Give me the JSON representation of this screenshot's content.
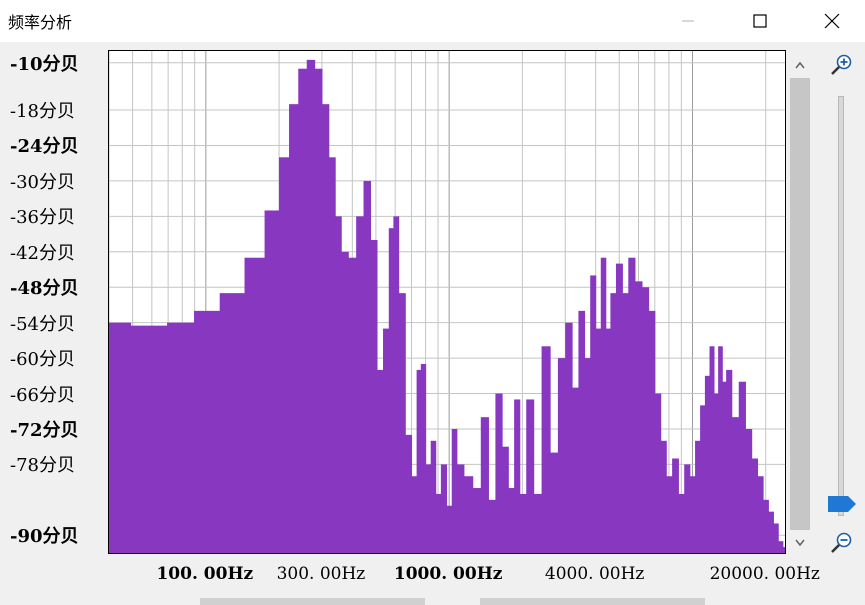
{
  "window": {
    "title": "频率分析",
    "minimize_icon": "minimize-icon",
    "maximize_icon": "maximize-icon",
    "close_icon": "close-icon"
  },
  "chart_data": {
    "type": "area",
    "title": "",
    "xlabel": "",
    "ylabel": "",
    "x_scale": "log",
    "xlim": [
      40,
      24000
    ],
    "ylim": [
      -93,
      -8
    ],
    "grid": true,
    "fill_color": "#8838c0",
    "y_tick_labels": [
      {
        "value": -10,
        "label": "-10分贝",
        "bold": true
      },
      {
        "value": -18,
        "label": "-18分贝",
        "bold": false
      },
      {
        "value": -24,
        "label": "-24分贝",
        "bold": true
      },
      {
        "value": -30,
        "label": "-30分贝",
        "bold": false
      },
      {
        "value": -36,
        "label": "-36分贝",
        "bold": false
      },
      {
        "value": -42,
        "label": "-42分贝",
        "bold": false
      },
      {
        "value": -48,
        "label": "-48分贝",
        "bold": true
      },
      {
        "value": -54,
        "label": "-54分贝",
        "bold": false
      },
      {
        "value": -60,
        "label": "-60分贝",
        "bold": false
      },
      {
        "value": -66,
        "label": "-66分贝",
        "bold": false
      },
      {
        "value": -72,
        "label": "-72分贝",
        "bold": true
      },
      {
        "value": -78,
        "label": "-78分贝",
        "bold": false
      },
      {
        "value": -90,
        "label": "-90分贝",
        "bold": true
      }
    ],
    "x_tick_labels": [
      {
        "value": 100,
        "label": "100. 00Hz",
        "bold": true
      },
      {
        "value": 300,
        "label": "300. 00Hz",
        "bold": false
      },
      {
        "value": 1000,
        "label": "1000. 00Hz",
        "bold": true
      },
      {
        "value": 4000,
        "label": "4000. 00Hz",
        "bold": false
      },
      {
        "value": 20000,
        "label": "20000. 00Hz",
        "bold": false
      }
    ],
    "x": [
      40,
      60,
      80,
      100,
      130,
      160,
      190,
      210,
      230,
      250,
      270,
      290,
      310,
      330,
      350,
      370,
      400,
      430,
      460,
      490,
      520,
      550,
      580,
      600,
      640,
      680,
      720,
      750,
      780,
      820,
      860,
      900,
      950,
      1000,
      1050,
      1100,
      1200,
      1300,
      1400,
      1500,
      1600,
      1700,
      1800,
      1900,
      2000,
      2150,
      2300,
      2500,
      2700,
      2900,
      3100,
      3300,
      3500,
      3700,
      3900,
      4100,
      4300,
      4500,
      4700,
      5000,
      5300,
      5600,
      6000,
      6400,
      6800,
      7200,
      7600,
      8000,
      8500,
      9000,
      9500,
      10000,
      10500,
      11000,
      11500,
      12000,
      12500,
      13000,
      13500,
      14000,
      15000,
      16000,
      17000,
      18000,
      19000,
      20000,
      21000,
      22000,
      23000,
      24000
    ],
    "y": [
      -54,
      -54.5,
      -54,
      -52,
      -49,
      -43,
      -35,
      -26,
      -17,
      -11,
      -9.5,
      -11,
      -17,
      -26,
      -36,
      -42,
      -43,
      -36,
      -30,
      -40,
      -62,
      -55,
      -38,
      -36,
      -49,
      -73,
      -80,
      -62,
      -61,
      -78,
      -74,
      -83,
      -78,
      -85,
      -72,
      -78,
      -80,
      -82,
      -70,
      -84,
      -66,
      -75,
      -82,
      -67,
      -83,
      -67,
      -83,
      -58,
      -76,
      -60,
      -54,
      -65,
      -52,
      -60,
      -46,
      -55,
      -43,
      -55,
      -49,
      -44,
      -49,
      -43,
      -47,
      -48,
      -52,
      -66,
      -74,
      -80,
      -77,
      -83,
      -78,
      -80,
      -74,
      -68,
      -63,
      -58,
      -66,
      -58,
      -64,
      -62,
      -70,
      -64,
      -72,
      -77,
      -80,
      -84,
      -86,
      -88,
      -91,
      -92
    ]
  }
}
